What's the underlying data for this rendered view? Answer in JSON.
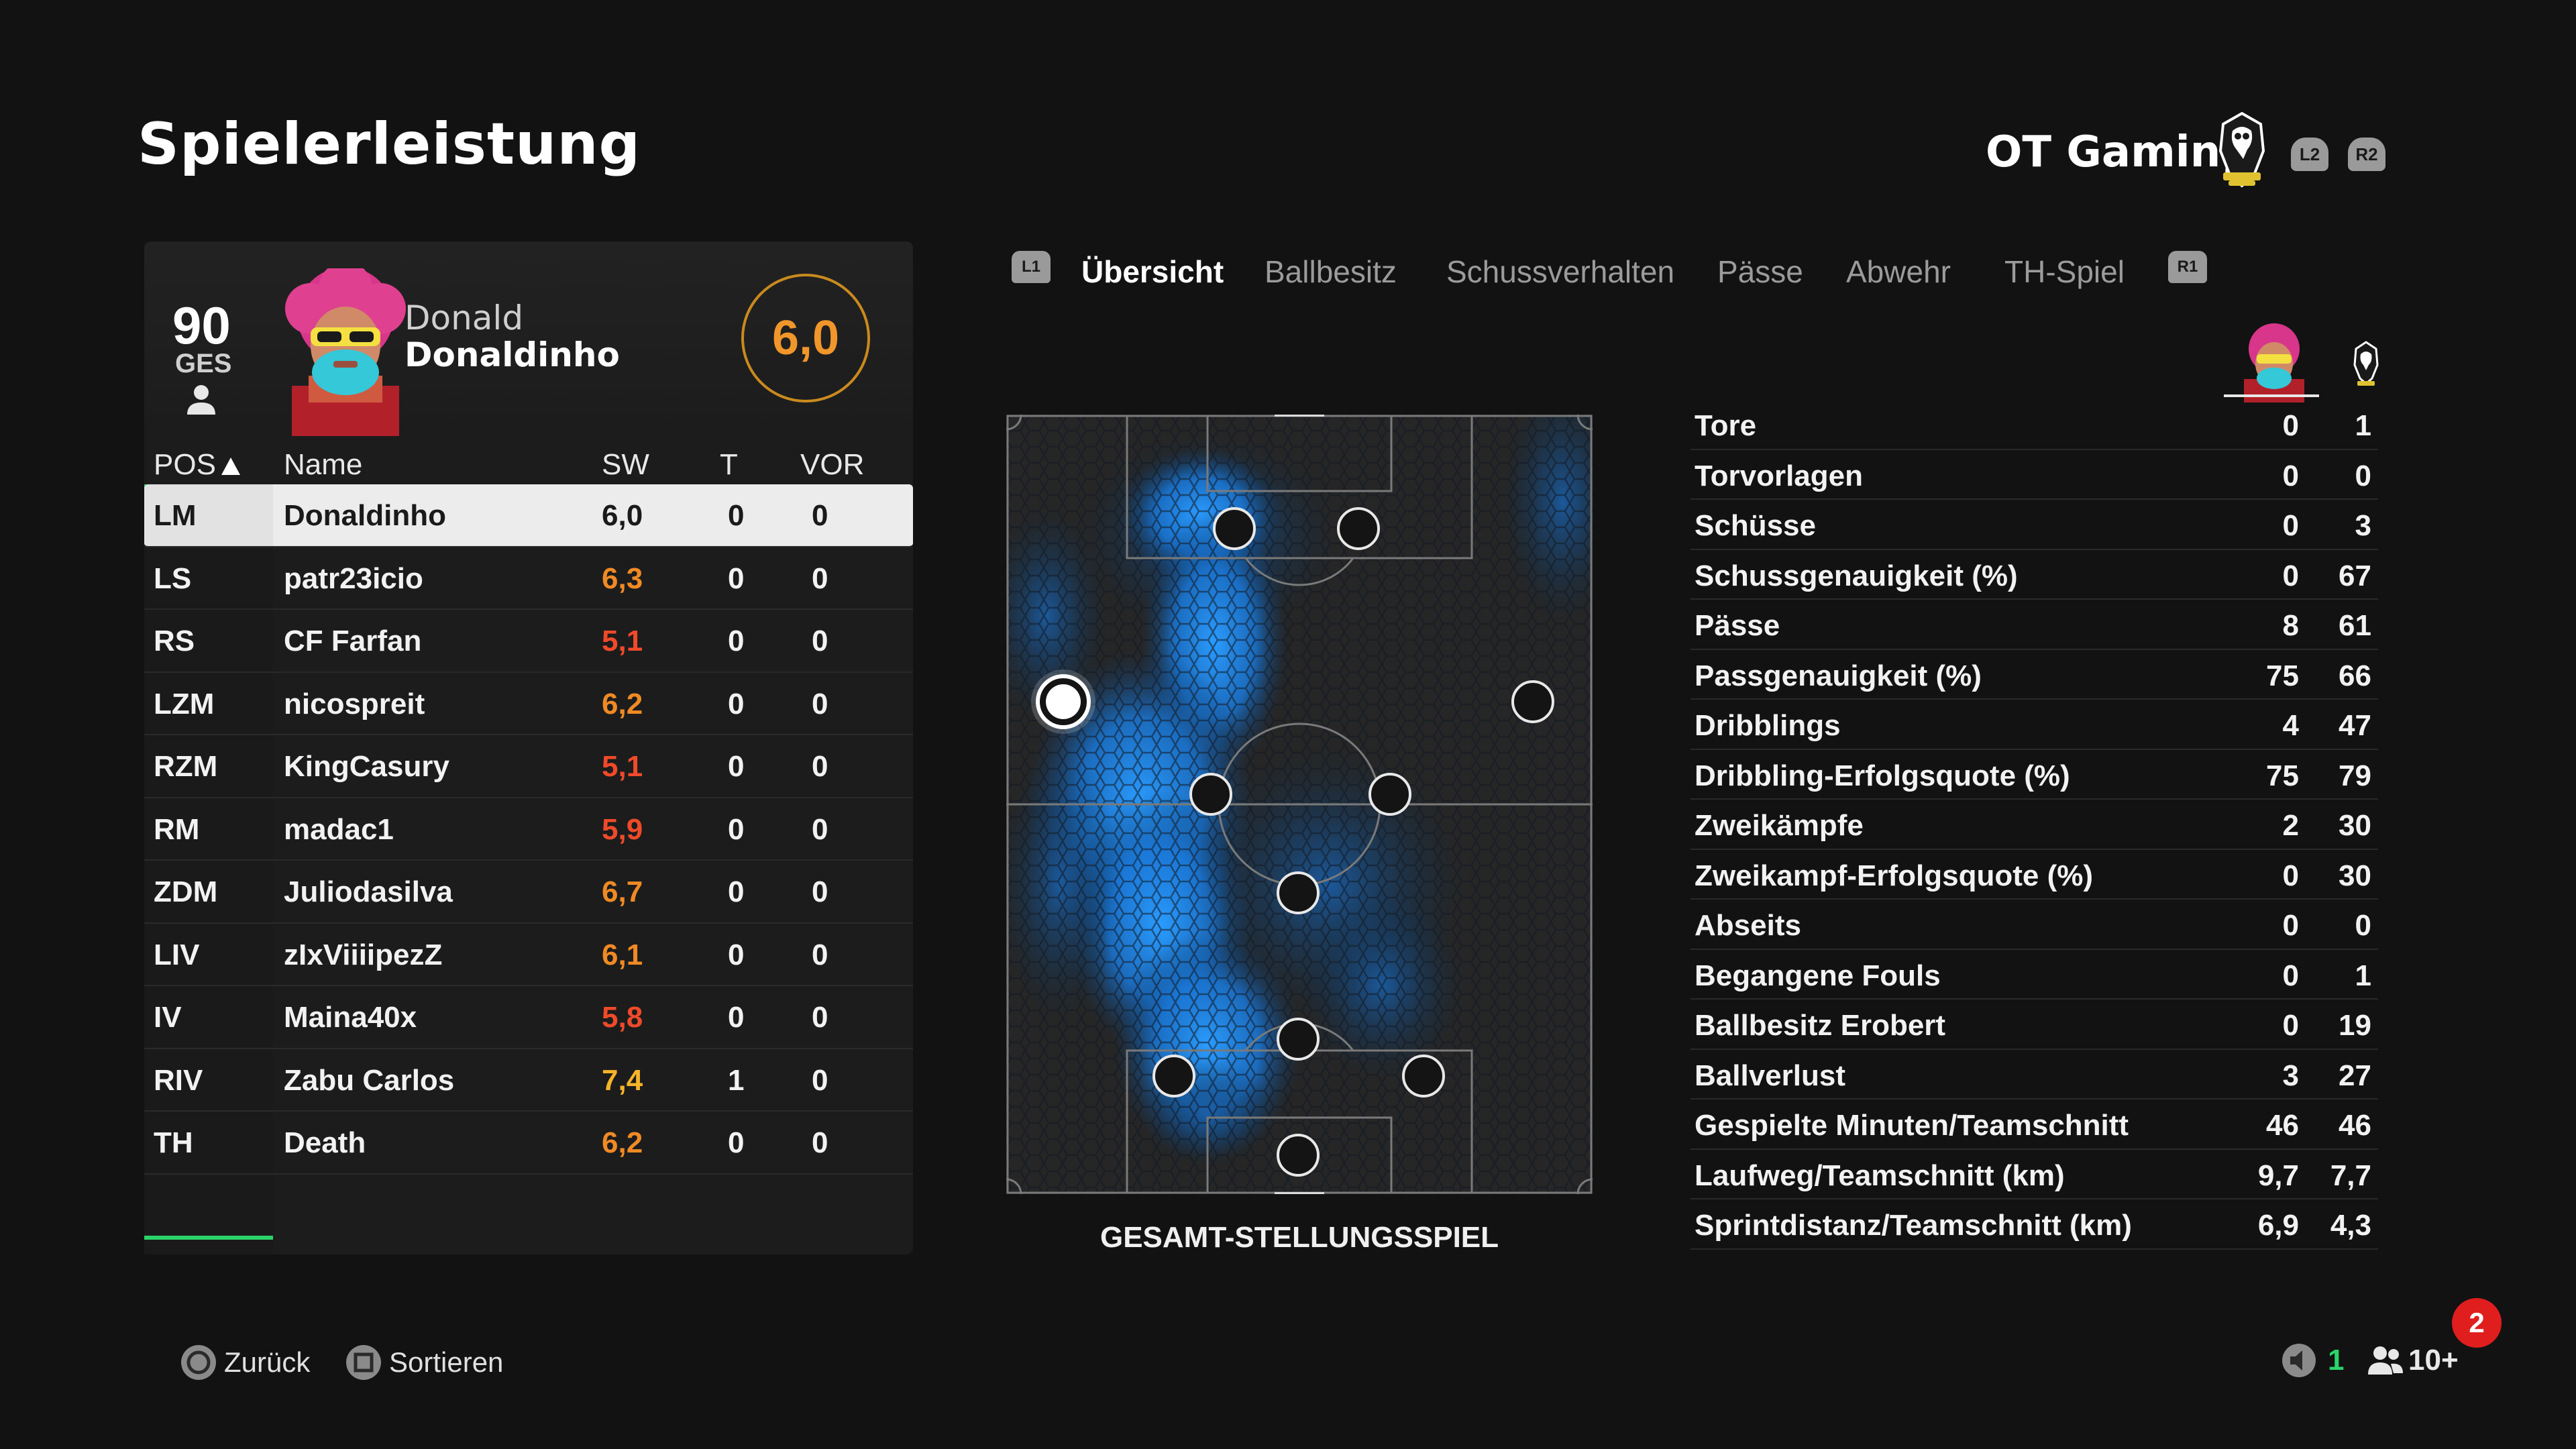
{
  "page": {
    "title": "Spielerleistung"
  },
  "team": {
    "name": "OT Gaming",
    "l2": "L2",
    "r2": "R2"
  },
  "player": {
    "overall": "90",
    "overall_label": "GES",
    "first_name": "Donald",
    "last_name": "Donaldinho",
    "match_rating": "6,0"
  },
  "table": {
    "headers": {
      "pos": "POS",
      "name": "Name",
      "sw": "SW",
      "t": "T",
      "vor": "VOR"
    },
    "rows": [
      {
        "pos": "LM",
        "name": "Donaldinho",
        "sw": "6,0",
        "t": "0",
        "vor": "0",
        "color": "#1a1a1a"
      },
      {
        "pos": "LS",
        "name": "patr23icio",
        "sw": "6,3",
        "t": "0",
        "vor": "0",
        "color": "#f08a24"
      },
      {
        "pos": "RS",
        "name": "CF Farfan",
        "sw": "5,1",
        "t": "0",
        "vor": "0",
        "color": "#ef4a2a"
      },
      {
        "pos": "LZM",
        "name": "nicospreit",
        "sw": "6,2",
        "t": "0",
        "vor": "0",
        "color": "#f08a24"
      },
      {
        "pos": "RZM",
        "name": "KingCasury",
        "sw": "5,1",
        "t": "0",
        "vor": "0",
        "color": "#ef4a2a"
      },
      {
        "pos": "RM",
        "name": "madac1",
        "sw": "5,9",
        "t": "0",
        "vor": "0",
        "color": "#ef4a2a"
      },
      {
        "pos": "ZDM",
        "name": "Juliodasilva",
        "sw": "6,7",
        "t": "0",
        "vor": "0",
        "color": "#f08a24"
      },
      {
        "pos": "LIV",
        "name": "zIxViiiipezZ",
        "sw": "6,1",
        "t": "0",
        "vor": "0",
        "color": "#f08a24"
      },
      {
        "pos": "IV",
        "name": "Maina40x",
        "sw": "5,8",
        "t": "0",
        "vor": "0",
        "color": "#ef4a2a"
      },
      {
        "pos": "RIV",
        "name": "Zabu Carlos",
        "sw": "7,4",
        "t": "1",
        "vor": "0",
        "color": "#f5b42a"
      },
      {
        "pos": "TH",
        "name": "Death",
        "sw": "6,2",
        "t": "0",
        "vor": "0",
        "color": "#f08a24"
      }
    ]
  },
  "tabs": {
    "l1": "L1",
    "r1": "R1",
    "items": [
      "Übersicht",
      "Ballbesitz",
      "Schussverhalten",
      "Pässe",
      "Abwehr",
      "TH-Spiel"
    ]
  },
  "pitch": {
    "caption": "GESAMT-STELLUNGSSPIEL"
  },
  "stats": {
    "rows": [
      {
        "label": "Tore",
        "a": "0",
        "b": "1"
      },
      {
        "label": "Torvorlagen",
        "a": "0",
        "b": "0"
      },
      {
        "label": "Schüsse",
        "a": "0",
        "b": "3"
      },
      {
        "label": "Schussgenauigkeit (%)",
        "a": "0",
        "b": "67"
      },
      {
        "label": "Pässe",
        "a": "8",
        "b": "61"
      },
      {
        "label": "Passgenauigkeit (%)",
        "a": "75",
        "b": "66"
      },
      {
        "label": "Dribblings",
        "a": "4",
        "b": "47"
      },
      {
        "label": "Dribbling-Erfolgsquote (%)",
        "a": "75",
        "b": "79"
      },
      {
        "label": "Zweikämpfe",
        "a": "2",
        "b": "30"
      },
      {
        "label": "Zweikampf-Erfolgsquote (%)",
        "a": "0",
        "b": "30"
      },
      {
        "label": "Abseits",
        "a": "0",
        "b": "0"
      },
      {
        "label": "Begangene Fouls",
        "a": "0",
        "b": "1"
      },
      {
        "label": "Ballbesitz Erobert",
        "a": "0",
        "b": "19"
      },
      {
        "label": "Ballverlust",
        "a": "3",
        "b": "27"
      },
      {
        "label": "Gespielte Minuten/Teamschnitt",
        "a": "46",
        "b": "46"
      },
      {
        "label": "Laufweg/Teamschnitt (km)",
        "a": "9,7",
        "b": "7,7"
      },
      {
        "label": "Sprintdistanz/Teamschnitt (km)",
        "a": "6,9",
        "b": "4,3"
      }
    ]
  },
  "footer": {
    "back_label": "Zurück",
    "sort_label": "Sortieren",
    "voice_count": "1",
    "party_count": "10+",
    "notifications": "2"
  },
  "colors": {
    "accent_green": "#2bd46a",
    "rating_orange": "#f0962a",
    "heat_blue": "#1e8fff",
    "badge_red": "#e01e1e"
  }
}
